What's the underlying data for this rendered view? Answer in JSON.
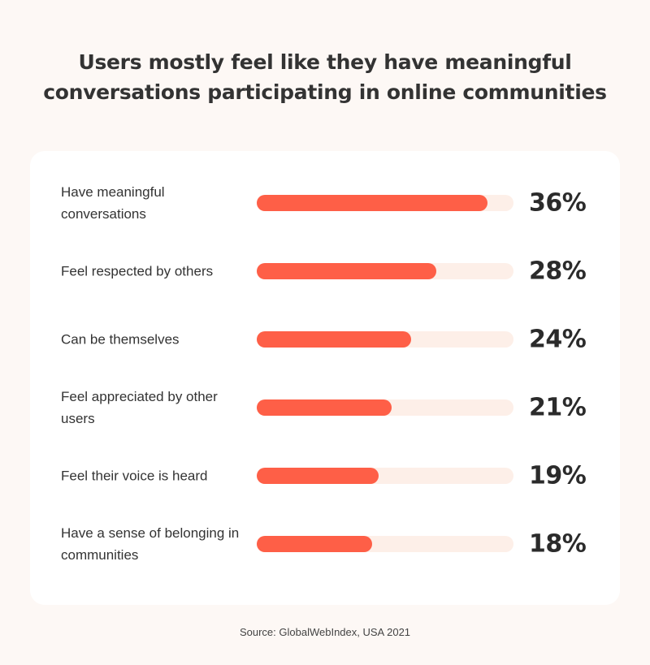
{
  "title_lines": [
    "Users mostly feel like they have meaningful",
    "conversations participating in online communities"
  ],
  "source": "Source: GlobalWebIndex, USA 2021",
  "colors": {
    "bar": "#fe5f47",
    "track": "#fdefe8",
    "background": "#fdf8f5",
    "card": "#ffffff"
  },
  "chart_data": {
    "type": "bar",
    "orientation": "horizontal",
    "title": "Users mostly feel like they have meaningful conversations participating in online communities",
    "categories": [
      "Have meaningful conversations",
      "Feel respected by others",
      "Can be themselves",
      "Feel appreciated by other users",
      "Feel their voice is heard",
      "Have a sense of belonging in communities"
    ],
    "values": [
      36,
      28,
      24,
      21,
      19,
      18
    ],
    "value_labels": [
      "36%",
      "28%",
      "24%",
      "21%",
      "19%",
      "18%"
    ],
    "unit": "%",
    "xlim": [
      0,
      40
    ],
    "grid": false,
    "legend": "none"
  }
}
